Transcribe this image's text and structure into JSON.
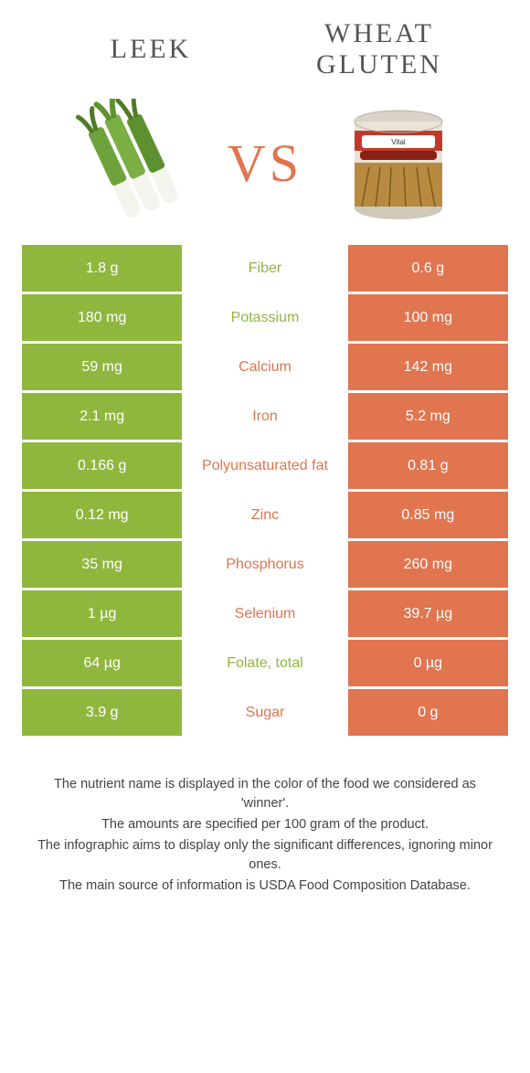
{
  "colors": {
    "green": "#8fb73e",
    "orange": "#e0754f",
    "text": "#4a4a4a",
    "bg": "#ffffff"
  },
  "header": {
    "left_title": "Leek",
    "right_title": "Wheat Gluten",
    "vs": "VS"
  },
  "rows": [
    {
      "left": "1.8 g",
      "label": "Fiber",
      "right": "0.6 g",
      "winner": "green"
    },
    {
      "left": "180 mg",
      "label": "Potassium",
      "right": "100 mg",
      "winner": "green"
    },
    {
      "left": "59 mg",
      "label": "Calcium",
      "right": "142 mg",
      "winner": "orange"
    },
    {
      "left": "2.1 mg",
      "label": "Iron",
      "right": "5.2 mg",
      "winner": "orange"
    },
    {
      "left": "0.166 g",
      "label": "Polyunsaturated fat",
      "right": "0.81 g",
      "winner": "orange"
    },
    {
      "left": "0.12 mg",
      "label": "Zinc",
      "right": "0.85 mg",
      "winner": "orange"
    },
    {
      "left": "35 mg",
      "label": "Phosphorus",
      "right": "260 mg",
      "winner": "orange"
    },
    {
      "left": "1 µg",
      "label": "Selenium",
      "right": "39.7 µg",
      "winner": "orange"
    },
    {
      "left": "64 µg",
      "label": "Folate, total",
      "right": "0 µg",
      "winner": "green"
    },
    {
      "left": "3.9 g",
      "label": "Sugar",
      "right": "0 g",
      "winner": "orange"
    }
  ],
  "footer": {
    "l1": "The nutrient name is displayed in the color of the food we considered as 'winner'.",
    "l2": "The amounts are specified per 100 gram of the product.",
    "l3": "The infographic aims to display only the significant differences, ignoring minor ones.",
    "l4": "The main source of information is USDA Food Composition Database."
  }
}
